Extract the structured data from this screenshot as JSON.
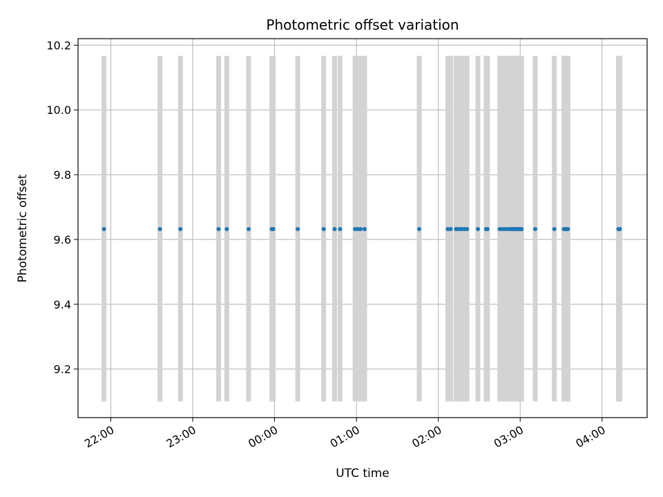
{
  "chart_data": {
    "type": "scatter",
    "title": "Photometric offset variation",
    "xlabel": "UTC time",
    "ylabel": "Photometric offset",
    "x_axis": {
      "kind": "time",
      "range": [
        "21:36",
        "04:33"
      ],
      "tick_labels": [
        "22:00",
        "23:00",
        "00:00",
        "01:00",
        "02:00",
        "03:00",
        "04:00"
      ]
    },
    "y_axis": {
      "range": [
        9.05,
        10.22
      ],
      "ticks": [
        9.2,
        9.4,
        9.6,
        9.8,
        10.0,
        10.2
      ],
      "tick_labels": [
        "9.2",
        "9.4",
        "9.6",
        "9.8",
        "10.0",
        "10.2"
      ]
    },
    "grid": true,
    "colors": {
      "points": "#1f77b4",
      "bands": "#d3d3d3",
      "grid": "#b0b0b0"
    },
    "band_y_range": [
      9.1,
      10.167
    ],
    "band_x": [
      "21:55",
      "22:36",
      "22:51",
      "23:19",
      "23:25",
      "23:41",
      "23:58",
      "23:59",
      "00:17",
      "00:36",
      "00:44",
      "00:48",
      "00:59",
      "01:01",
      "01:03",
      "01:06",
      "01:46",
      "02:07",
      "02:09",
      "02:13",
      "02:14",
      "02:16",
      "02:17",
      "02:19",
      "02:21",
      "02:29",
      "02:35",
      "02:36",
      "02:45",
      "02:47",
      "02:49",
      "02:51",
      "02:53",
      "02:54",
      "02:55",
      "02:56",
      "02:57",
      "02:58",
      "02:59",
      "03:00",
      "03:01",
      "03:11",
      "03:25",
      "03:32",
      "03:33",
      "03:34",
      "03:35",
      "04:12",
      "04:13"
    ],
    "points": {
      "y": 9.632,
      "x": [
        "21:55",
        "22:36",
        "22:51",
        "23:19",
        "23:25",
        "23:41",
        "23:58",
        "23:59",
        "00:17",
        "00:36",
        "00:44",
        "00:48",
        "00:59",
        "01:01",
        "01:03",
        "01:06",
        "01:46",
        "02:07",
        "02:09",
        "02:13",
        "02:14",
        "02:16",
        "02:17",
        "02:19",
        "02:21",
        "02:29",
        "02:35",
        "02:36",
        "02:45",
        "02:47",
        "02:49",
        "02:51",
        "02:53",
        "02:54",
        "02:55",
        "02:56",
        "02:57",
        "02:58",
        "02:59",
        "03:00",
        "03:01",
        "03:11",
        "03:25",
        "03:32",
        "03:33",
        "03:34",
        "03:35",
        "04:12",
        "04:13"
      ]
    }
  }
}
